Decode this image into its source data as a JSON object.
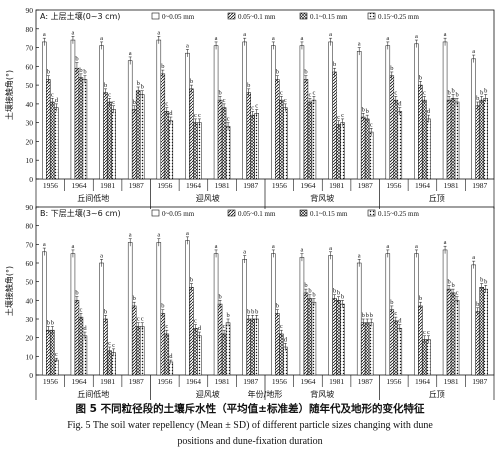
{
  "figure": {
    "caption_zh": "图 5   不同粒径段的土壤斥水性（平均值±标准差）随年代及地形的变化特征",
    "caption_en_line1": "Fig. 5   The soil water repellency (Mean ± SD) of different particle sizes changing with dune",
    "caption_en_line2": "positions and dune-fixation duration"
  },
  "colors": {
    "axis": "#111111",
    "bar_fill": "#ffffff",
    "bar_edge": "#111111"
  },
  "chart_data": [
    {
      "type": "bar",
      "panel_label": "A: 上层土壤(0~3 cm)",
      "ylabel": "土壤接触角(°)",
      "ylim": [
        0,
        90
      ],
      "yticks": [
        0,
        10,
        20,
        30,
        40,
        50,
        60,
        70,
        80,
        90
      ],
      "legend_position": "top",
      "positions": [
        "丘间低地",
        "迎风坡",
        "背风坡",
        "丘顶"
      ],
      "years": [
        "1956",
        "1964",
        "1981",
        "1987"
      ],
      "series": [
        {
          "name": "0~0.05 mm",
          "pattern": "white",
          "values": [
            [
              73,
              74,
              71,
              63
            ],
            [
              74,
              67,
              71,
              73
            ],
            [
              71,
              71,
              73,
              68
            ],
            [
              71,
              72,
              73,
              64
            ]
          ],
          "errors": [
            [
              2,
              2,
              2,
              2
            ],
            [
              2,
              2,
              2,
              2
            ],
            [
              2,
              2,
              2,
              2
            ],
            [
              2,
              2,
              2,
              2
            ]
          ],
          "letters": [
            [
              "a",
              "a",
              "a",
              "a"
            ],
            [
              "a",
              "a",
              "a",
              "a"
            ],
            [
              "a",
              "a",
              "a",
              "a"
            ],
            [
              "a",
              "a",
              "a",
              "a"
            ]
          ]
        },
        {
          "name": "0.05~0.1 mm",
          "pattern": "hatch",
          "values": [
            [
              53,
              59,
              46,
              37
            ],
            [
              56,
              48,
              42,
              46
            ],
            [
              53,
              53,
              57,
              33
            ],
            [
              55,
              50,
              42,
              39
            ]
          ],
          "errors": [
            [
              2,
              3,
              2,
              2
            ],
            [
              2,
              2,
              2,
              2
            ],
            [
              2,
              2,
              2,
              2
            ],
            [
              2,
              2,
              2,
              2
            ]
          ],
          "letters": [
            [
              "b",
              "b",
              "b",
              "b"
            ],
            [
              "b",
              "b",
              "b",
              "b"
            ],
            [
              "b",
              "b",
              "b",
              "b"
            ],
            [
              "b",
              "b",
              "b",
              "b"
            ]
          ]
        },
        {
          "name": "0.1~0.15 mm",
          "pattern": "cross",
          "values": [
            [
              41,
              54,
              41,
              47
            ],
            [
              36,
              30,
              38,
              34
            ],
            [
              42,
              41,
              29,
              32
            ],
            [
              42,
              42,
              43,
              42
            ]
          ],
          "errors": [
            [
              2,
              2,
              2,
              2
            ],
            [
              2,
              2,
              2,
              2
            ],
            [
              2,
              2,
              2,
              2
            ],
            [
              2,
              2,
              2,
              2
            ]
          ],
          "letters": [
            [
              "c",
              "b",
              "c",
              "b"
            ],
            [
              "c",
              "c",
              "c",
              "c"
            ],
            [
              "c",
              "c",
              "c",
              "b"
            ],
            [
              "c",
              "c",
              "b",
              "b"
            ]
          ]
        },
        {
          "name": "0.15~0.25 mm",
          "pattern": "dots",
          "values": [
            [
              38,
              53,
              37,
              45
            ],
            [
              31,
              30,
              28,
              35
            ],
            [
              38,
              42,
              30,
              25
            ],
            [
              36,
              32,
              41,
              43
            ]
          ],
          "errors": [
            [
              2,
              2,
              2,
              2
            ],
            [
              2,
              2,
              2,
              2
            ],
            [
              2,
              2,
              2,
              2
            ],
            [
              2,
              2,
              2,
              2
            ]
          ],
          "letters": [
            [
              "d",
              "b",
              "c",
              "b"
            ],
            [
              "d",
              "c",
              "c",
              "c"
            ],
            [
              "c",
              "c",
              "c",
              "c"
            ],
            [
              "d",
              "d",
              "b",
              "b"
            ]
          ]
        }
      ]
    },
    {
      "type": "bar",
      "panel_label": "B: 下层土壤(3~6 cm)",
      "ylabel": "土壤接触角(°)",
      "xlabel": "年份/地形",
      "ylim": [
        0,
        90
      ],
      "yticks": [
        0,
        10,
        20,
        30,
        40,
        50,
        60,
        70,
        80,
        90
      ],
      "legend_position": "top",
      "positions": [
        "丘间低地",
        "迎风坡",
        "背风坡",
        "丘顶"
      ],
      "years": [
        "1956",
        "1964",
        "1981",
        "1987"
      ],
      "series": [
        {
          "name": "0~0.05 mm",
          "pattern": "white",
          "values": [
            [
              66,
              65,
              60,
              71
            ],
            [
              71,
              72,
              65,
              62
            ],
            [
              65,
              63,
              64,
              60
            ],
            [
              65,
              65,
              67,
              59
            ]
          ],
          "errors": [
            [
              2,
              2,
              2,
              2
            ],
            [
              2,
              2,
              2,
              2
            ],
            [
              2,
              2,
              2,
              2
            ],
            [
              2,
              2,
              2,
              2
            ]
          ],
          "letters": [
            [
              "a",
              "a",
              "a",
              "a"
            ],
            [
              "a",
              "a",
              "a",
              "a"
            ],
            [
              "a",
              "a",
              "a",
              "a"
            ],
            [
              "a",
              "a",
              "a",
              "a"
            ]
          ]
        },
        {
          "name": "0.05~0.1 mm",
          "pattern": "hatch",
          "values": [
            [
              24,
              40,
              30,
              37
            ],
            [
              33,
              47,
              38,
              30
            ],
            [
              33,
              44,
              41,
              28
            ],
            [
              35,
              37,
              46,
              34
            ]
          ],
          "errors": [
            [
              2,
              2,
              2,
              2
            ],
            [
              2,
              2,
              2,
              2
            ],
            [
              2,
              2,
              2,
              2
            ],
            [
              2,
              2,
              2,
              2
            ]
          ],
          "letters": [
            [
              "b",
              "b",
              "b",
              "b"
            ],
            [
              "b",
              "b",
              "b",
              "b"
            ],
            [
              "b",
              "b",
              "b",
              "b"
            ],
            [
              "b",
              "b",
              "b",
              "b"
            ]
          ]
        },
        {
          "name": "0.1~0.15 mm",
          "pattern": "cross",
          "values": [
            [
              24,
              31,
              13,
              26
            ],
            [
              22,
              25,
              22,
              30
            ],
            [
              22,
              41,
              40,
              28
            ],
            [
              29,
              19,
              44,
              47
            ]
          ],
          "errors": [
            [
              2,
              2,
              2,
              2
            ],
            [
              2,
              2,
              2,
              2
            ],
            [
              2,
              2,
              2,
              2
            ],
            [
              2,
              2,
              2,
              2
            ]
          ],
          "letters": [
            [
              "b",
              "c",
              "c",
              "c"
            ],
            [
              "c",
              "c",
              "c",
              "b"
            ],
            [
              "c",
              "b",
              "b",
              "b"
            ],
            [
              "c",
              "c",
              "b",
              "b"
            ]
          ]
        },
        {
          "name": "0.15~0.25 mm",
          "pattern": "dots",
          "values": [
            [
              8,
              21,
              12,
              26
            ],
            [
              7,
              21,
              28,
              30
            ],
            [
              15,
              39,
              38,
              28
            ],
            [
              25,
              19,
              40,
              46
            ]
          ],
          "errors": [
            [
              1,
              2,
              2,
              2
            ],
            [
              1,
              2,
              2,
              2
            ],
            [
              2,
              2,
              2,
              2
            ],
            [
              2,
              2,
              2,
              2
            ]
          ],
          "letters": [
            [
              "c",
              "d",
              "c",
              "c"
            ],
            [
              "d",
              "d",
              "b",
              "b"
            ],
            [
              "d",
              "b",
              "b",
              "b"
            ],
            [
              "d",
              "c",
              "c",
              "b"
            ]
          ]
        }
      ]
    }
  ]
}
